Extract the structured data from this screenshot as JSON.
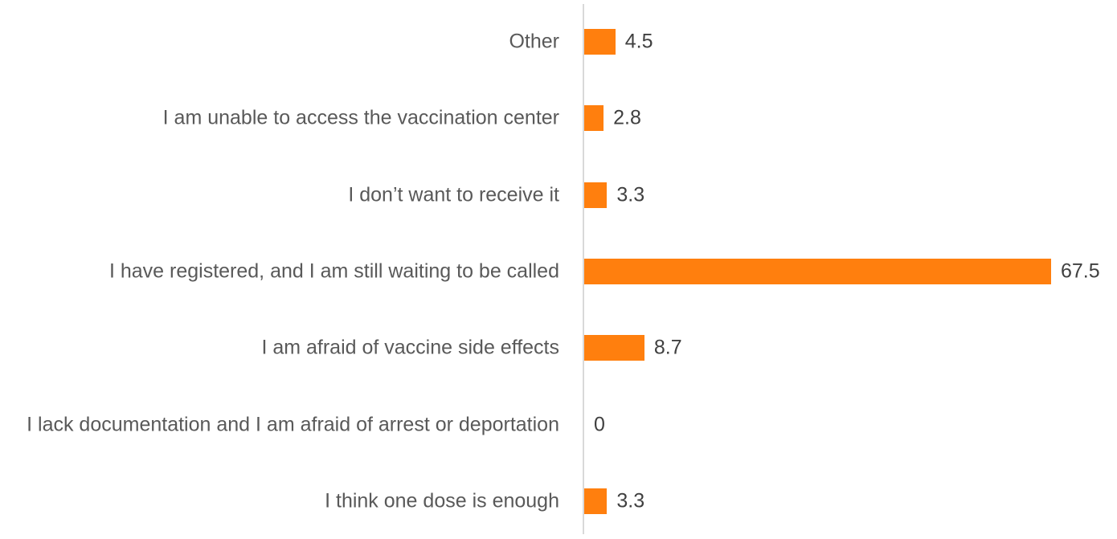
{
  "chart_data": {
    "type": "bar",
    "orientation": "horizontal",
    "categories": [
      "Other",
      "I am unable to access the vaccination center",
      "I don’t want to receive it",
      "I have registered, and I am still waiting to be called",
      "I am afraid of vaccine side effects",
      "I lack documentation and I am afraid of arrest or deportation",
      "I think one dose is enough"
    ],
    "values": [
      4.5,
      2.8,
      3.3,
      67.5,
      8.7,
      0,
      3.3
    ],
    "color": "#ff7f0e"
  }
}
